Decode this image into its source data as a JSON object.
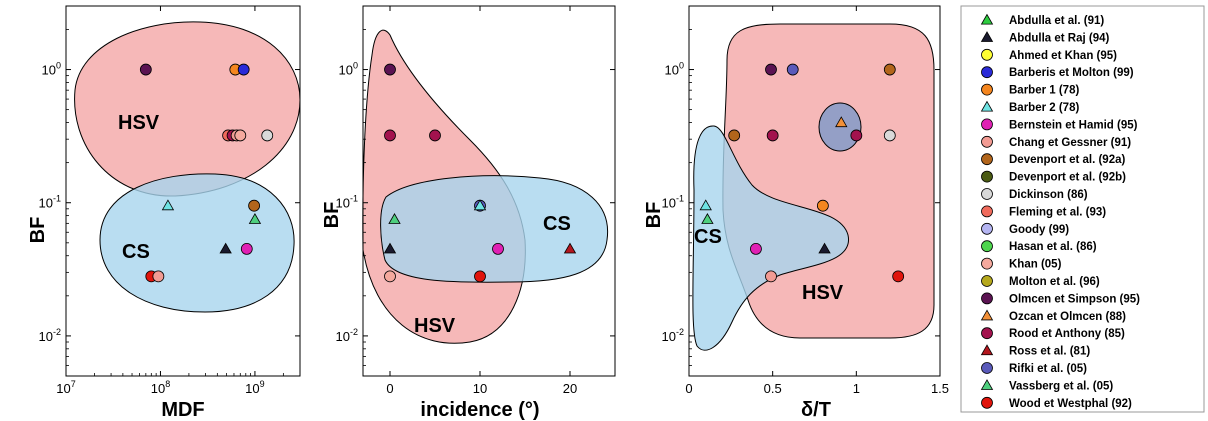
{
  "chart_data": [
    {
      "type": "scatter",
      "xlabel": "MDF",
      "ylabel": "BF",
      "xscale": "log",
      "yscale": "log",
      "xlim": [
        10000000,
        3000000000
      ],
      "ylim": [
        0.005,
        3
      ],
      "xticks": [
        {
          "v": 10000000,
          "base": "10",
          "exp": "7"
        },
        {
          "v": 100000000,
          "base": "10",
          "exp": "8"
        },
        {
          "v": 1000000000,
          "base": "10",
          "exp": "9"
        }
      ],
      "yticks": [
        {
          "v": 0.01,
          "base": "10",
          "exp": "-2"
        },
        {
          "v": 0.1,
          "base": "10",
          "exp": "-1"
        },
        {
          "v": 1,
          "base": "10",
          "exp": "0"
        }
      ],
      "regions": [
        {
          "label": "HSV",
          "color": "#f4a6a6"
        },
        {
          "label": "CS",
          "color": "#a8d4ee"
        }
      ],
      "points": [
        {
          "x": 70000000,
          "y": 1.0,
          "series": "Olmcen et Simpson (95)"
        },
        {
          "x": 620000000,
          "y": 1.0,
          "series": "Barber 1 (78)"
        },
        {
          "x": 760000000,
          "y": 1.0,
          "series": "Barberis et Molton (99)"
        },
        {
          "x": 520000000,
          "y": 0.32,
          "series": "Fleming et al. (93)"
        },
        {
          "x": 580000000,
          "y": 0.32,
          "series": "Rood et Anthony (85)"
        },
        {
          "x": 640000000,
          "y": 0.32,
          "series": "Chang et Gessner (91)"
        },
        {
          "x": 700000000,
          "y": 0.32,
          "series": "Khan (05)"
        },
        {
          "x": 1350000000,
          "y": 0.32,
          "series": "Dickinson (86)"
        },
        {
          "x": 120000000,
          "y": 0.095,
          "series": "Barber 2 (78)"
        },
        {
          "x": 980000000,
          "y": 0.095,
          "series": "Devenport et al. (92a)"
        },
        {
          "x": 1000000000,
          "y": 0.075,
          "series": "Vassberg et al. (05)"
        },
        {
          "x": 490000000,
          "y": 0.045,
          "series": "Abdulla et Raj (94)"
        },
        {
          "x": 820000000,
          "y": 0.045,
          "series": "Bernstein et Hamid (95)"
        },
        {
          "x": 80000000,
          "y": 0.028,
          "series": "Wood et Westphal (92)"
        },
        {
          "x": 95000000,
          "y": 0.028,
          "series": "Chang et Gessner (91)"
        }
      ]
    },
    {
      "type": "scatter",
      "xlabel": "incidence (°)",
      "ylabel": "BF",
      "xscale": "linear",
      "yscale": "log",
      "xlim": [
        -3,
        25
      ],
      "ylim": [
        0.005,
        3
      ],
      "xticks": [
        {
          "v": 0,
          "label": "0"
        },
        {
          "v": 10,
          "label": "10"
        },
        {
          "v": 20,
          "label": "20"
        }
      ],
      "yticks": [
        {
          "v": 0.01,
          "base": "10",
          "exp": "-2"
        },
        {
          "v": 0.1,
          "base": "10",
          "exp": "-1"
        },
        {
          "v": 1,
          "base": "10",
          "exp": "0"
        }
      ],
      "regions": [
        {
          "label": "HSV",
          "color": "#f4a6a6"
        },
        {
          "label": "CS",
          "color": "#a8d4ee"
        }
      ],
      "points": [
        {
          "x": 0,
          "y": 1.0,
          "series": "Olmcen et Simpson (95)"
        },
        {
          "x": 0,
          "y": 0.32,
          "series": "Rood et Anthony (85)"
        },
        {
          "x": 5,
          "y": 0.32,
          "series": "Rood et Anthony (85)"
        },
        {
          "x": 10,
          "y": 0.095,
          "series": "Rifki et al. (05)"
        },
        {
          "x": 10,
          "y": 0.095,
          "series": "Barber 2 (78)"
        },
        {
          "x": 0.5,
          "y": 0.075,
          "series": "Vassberg et al. (05)"
        },
        {
          "x": 0,
          "y": 0.045,
          "series": "Abdulla et Raj (94)"
        },
        {
          "x": 12,
          "y": 0.045,
          "series": "Bernstein et Hamid (95)"
        },
        {
          "x": 20,
          "y": 0.045,
          "series": "Ross et al. (81)"
        },
        {
          "x": 0,
          "y": 0.028,
          "series": "Khan (05)"
        },
        {
          "x": 10,
          "y": 0.028,
          "series": "Wood et Westphal (92)"
        }
      ]
    },
    {
      "type": "scatter",
      "xlabel": "δ/T",
      "ylabel": "BF",
      "xscale": "linear",
      "yscale": "log",
      "xlim": [
        0,
        1.5
      ],
      "ylim": [
        0.005,
        3
      ],
      "xticks": [
        {
          "v": 0,
          "label": "0"
        },
        {
          "v": 0.5,
          "label": "0.5"
        },
        {
          "v": 1,
          "label": "1"
        },
        {
          "v": 1.5,
          "label": "1.5"
        }
      ],
      "yticks": [
        {
          "v": 0.01,
          "base": "10",
          "exp": "-2"
        },
        {
          "v": 0.1,
          "base": "10",
          "exp": "-1"
        },
        {
          "v": 1,
          "base": "10",
          "exp": "0"
        }
      ],
      "regions": [
        {
          "label": "HSV",
          "color": "#f4a6a6"
        },
        {
          "label": "CS",
          "color": "#a8d4ee"
        }
      ],
      "points": [
        {
          "x": 0.49,
          "y": 1.0,
          "series": "Olmcen et Simpson (95)"
        },
        {
          "x": 0.62,
          "y": 1.0,
          "series": "Rifki et al. (05)"
        },
        {
          "x": 1.2,
          "y": 1.0,
          "series": "Devenport et al. (92a)"
        },
        {
          "x": 0.27,
          "y": 0.32,
          "series": "Devenport et al. (92a)"
        },
        {
          "x": 0.5,
          "y": 0.32,
          "series": "Rood et Anthony (85)"
        },
        {
          "x": 0.91,
          "y": 0.4,
          "series": "Ozcan et Olmcen (88)"
        },
        {
          "x": 1.0,
          "y": 0.32,
          "series": "Rood et Anthony (85)"
        },
        {
          "x": 1.2,
          "y": 0.32,
          "series": "Dickinson (86)"
        },
        {
          "x": 0.1,
          "y": 0.095,
          "series": "Barber 2 (78)"
        },
        {
          "x": 0.11,
          "y": 0.075,
          "series": "Vassberg et al. (05)"
        },
        {
          "x": 0.8,
          "y": 0.095,
          "series": "Barber 1 (78)"
        },
        {
          "x": 0.4,
          "y": 0.045,
          "series": "Bernstein et Hamid (95)"
        },
        {
          "x": 0.81,
          "y": 0.045,
          "series": "Abdulla et Raj (94)"
        },
        {
          "x": 0.49,
          "y": 0.028,
          "series": "Chang et Gessner (91)"
        },
        {
          "x": 1.25,
          "y": 0.028,
          "series": "Wood et Westphal (92)"
        }
      ]
    }
  ],
  "legend": [
    {
      "label": "Abdulla et al. (91)",
      "marker": "triangle",
      "color": "#2ecc40"
    },
    {
      "label": "Abdulla et Raj (94)",
      "marker": "triangle",
      "color": "#1a1a2e"
    },
    {
      "label": "Ahmed et Khan (95)",
      "marker": "circle",
      "color": "#ffff33"
    },
    {
      "label": "Barberis et Molton (99)",
      "marker": "circle",
      "color": "#2a2ad8"
    },
    {
      "label": "Barber 1 (78)",
      "marker": "circle",
      "color": "#f5861f"
    },
    {
      "label": "Barber 2 (78)",
      "marker": "triangle",
      "color": "#6fe3e3"
    },
    {
      "label": "Bernstein et Hamid (95)",
      "marker": "circle",
      "color": "#e021b4"
    },
    {
      "label": "Chang et Gessner (91)",
      "marker": "circle",
      "color": "#f29b93"
    },
    {
      "label": "Devenport et al. (92a)",
      "marker": "circle",
      "color": "#b2651b"
    },
    {
      "label": "Devenport et al. (92b)",
      "marker": "circle",
      "color": "#4a5a12"
    },
    {
      "label": "Dickinson (86)",
      "marker": "circle",
      "color": "#d9d9d9"
    },
    {
      "label": "Fleming et al. (93)",
      "marker": "circle",
      "color": "#f06b5c"
    },
    {
      "label": "Goody (99)",
      "marker": "circle",
      "color": "#b5b5f2"
    },
    {
      "label": "Hasan et al. (86)",
      "marker": "circle",
      "color": "#4ed54e"
    },
    {
      "label": "Khan (05)",
      "marker": "circle",
      "color": "#f5a99e"
    },
    {
      "label": "Molton et al. (96)",
      "marker": "circle",
      "color": "#b5a81d"
    },
    {
      "label": "Olmcen et Simpson (95)",
      "marker": "circle",
      "color": "#5b1352"
    },
    {
      "label": "Ozcan et Olmcen (88)",
      "marker": "triangle",
      "color": "#f29038"
    },
    {
      "label": "Rood et Anthony (85)",
      "marker": "circle",
      "color": "#a3124e"
    },
    {
      "label": "Ross et al. (81)",
      "marker": "triangle",
      "color": "#b3161e"
    },
    {
      "label": "Rifki et al. (05)",
      "marker": "circle",
      "color": "#5a5aba"
    },
    {
      "label": "Vassberg et al. (05)",
      "marker": "triangle",
      "color": "#4ecf7e"
    },
    {
      "label": "Wood et Westphal (92)",
      "marker": "circle",
      "color": "#e0140c"
    }
  ]
}
